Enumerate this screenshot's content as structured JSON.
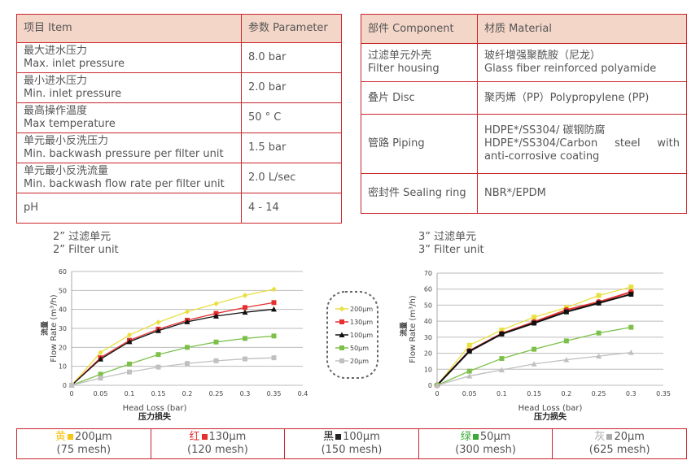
{
  "spec_table": {
    "headers": [
      "项目 Item",
      "参数 Parameter"
    ],
    "rows": [
      {
        "cn": "最大进水压力",
        "en": "Max. inlet pressure",
        "value": "8.0 bar"
      },
      {
        "cn": "最小进水压力",
        "en": "Min. inlet pressure",
        "value": "2.0 bar"
      },
      {
        "cn": "最高操作温度",
        "en": "Max temperature",
        "value": "50 ° C"
      },
      {
        "cn": "单元最小反洗压力",
        "en": "Min. backwash pressure per filter unit",
        "value": "1.5 bar"
      },
      {
        "cn": "单元最小反洗流量",
        "en": "Min. backwash flow rate per filter unit",
        "value": "2.0 L/sec"
      },
      {
        "cn": "",
        "en": "pH",
        "value": "4 - 14"
      }
    ]
  },
  "material_table": {
    "headers": [
      "部件 Component",
      "材质 Material"
    ],
    "rows": [
      {
        "component": "过滤单元外壳\nFilter housing",
        "material": "玻纤增强聚酰胺（尼龙）\nGlass fiber reinforced polyamide"
      },
      {
        "component": "叠片 Disc",
        "material": "聚丙烯（PP）Polypropylene (PP)"
      },
      {
        "component": "管路 Piping",
        "material": "HDPE*/SS304/ 碳钢防腐\nHDPE*/SS304/Carbon steel with anti-corrosive coating"
      },
      {
        "component": "密封件 Sealing ring",
        "material": "NBR*/EPDM"
      }
    ]
  },
  "chart_data": [
    {
      "type": "line",
      "title_cn": "2” 过滤单元",
      "title_en": "2” Filter unit",
      "xlabel": "Head Loss (bar)",
      "xlabel_cn": "压力损失",
      "ylabel": "Flow Rate (m³/h)",
      "ylabel_cn": "流量",
      "xlim": [
        0,
        0.4
      ],
      "ylim": [
        0,
        60
      ],
      "xticks": [
        "0",
        "0.05",
        "0.1",
        "0.15",
        "0.2",
        "0.25",
        "0.3",
        "0.35",
        "0.4"
      ],
      "yticks": [
        "0",
        "10",
        "20",
        "30",
        "40",
        "50",
        "60"
      ],
      "grid": true,
      "legend": "right, dashed rounded box",
      "x": [
        0,
        0.05,
        0.1,
        0.15,
        0.2,
        0.25,
        0.3,
        0.35
      ],
      "series": [
        {
          "name": "200µm",
          "color": "#e8e040",
          "marker": "diamond",
          "values": [
            0,
            17.3,
            26.5,
            33.2,
            38.8,
            43,
            47.4,
            50.6
          ]
        },
        {
          "name": "130µm",
          "color": "#e53030",
          "marker": "square",
          "values": [
            0,
            14.5,
            23.7,
            29.6,
            34.3,
            37.9,
            41,
            43.6
          ]
        },
        {
          "name": "100µm",
          "color": "#111111",
          "marker": "triangle",
          "values": [
            0,
            13.8,
            23,
            28.8,
            33.5,
            36.5,
            38.5,
            40.1
          ]
        },
        {
          "name": "50µm",
          "color": "#7cc04a",
          "marker": "square",
          "values": [
            0,
            5.8,
            11.2,
            16.2,
            20,
            22.8,
            24.7,
            26
          ]
        },
        {
          "name": "20µm",
          "color": "#c0c0c0",
          "marker": "square",
          "values": [
            0,
            3.8,
            7,
            9.6,
            11.5,
            12.9,
            13.9,
            14.5
          ]
        }
      ]
    },
    {
      "type": "line",
      "title_cn": "3” 过滤单元",
      "title_en": "3” Filter unit",
      "xlabel": "Head Loss (bar)",
      "xlabel_cn": "压力损失",
      "ylabel": "Flow Rate (m³/h)",
      "ylabel_cn": "流量",
      "xlim": [
        0,
        0.35
      ],
      "ylim": [
        0,
        70
      ],
      "xticks": [
        "0",
        "0.05",
        "0.1",
        "0.15",
        "0.2",
        "0.25",
        "0.3",
        "0.35"
      ],
      "yticks": [
        "0",
        "10",
        "20",
        "30",
        "40",
        "50",
        "60",
        "70"
      ],
      "grid": true,
      "x": [
        0,
        0.05,
        0.1,
        0.15,
        0.2,
        0.25,
        0.3
      ],
      "series": [
        {
          "color": "#e8e040",
          "marker": "square",
          "values": [
            0,
            25,
            34.5,
            42.5,
            48.5,
            56,
            61.3
          ]
        },
        {
          "color": "#e53030",
          "marker": "circle",
          "values": [
            0,
            21.5,
            32.3,
            39.5,
            47,
            52,
            58.2
          ]
        },
        {
          "color": "#111111",
          "marker": "square",
          "values": [
            0,
            21.2,
            32,
            38.8,
            45.8,
            51.3,
            56.8
          ]
        },
        {
          "color": "#7cc04a",
          "marker": "square",
          "values": [
            0,
            8.8,
            16.7,
            22.5,
            27.7,
            32.6,
            36.2
          ]
        },
        {
          "color": "#c0c0c0",
          "marker": "triangle",
          "values": [
            0,
            5.8,
            9.6,
            13.3,
            15.9,
            18.2,
            20.5
          ]
        }
      ]
    }
  ],
  "mesh_legend": [
    {
      "color_cn": "黄",
      "color": "#f5c518",
      "size": "200µm",
      "mesh": "(75 mesh)"
    },
    {
      "color_cn": "红",
      "color": "#e53030",
      "size": "130µm",
      "mesh": "(120 mesh)"
    },
    {
      "color_cn": "黑",
      "color": "#222222",
      "size": "100µm",
      "mesh": "(150 mesh)"
    },
    {
      "color_cn": "绿",
      "color": "#3aaa35",
      "size": "50µm",
      "mesh": "(300 mesh)"
    },
    {
      "color_cn": "灰",
      "color": "#aaaaaa",
      "size": "20µm",
      "mesh": "(625 mesh)"
    }
  ]
}
